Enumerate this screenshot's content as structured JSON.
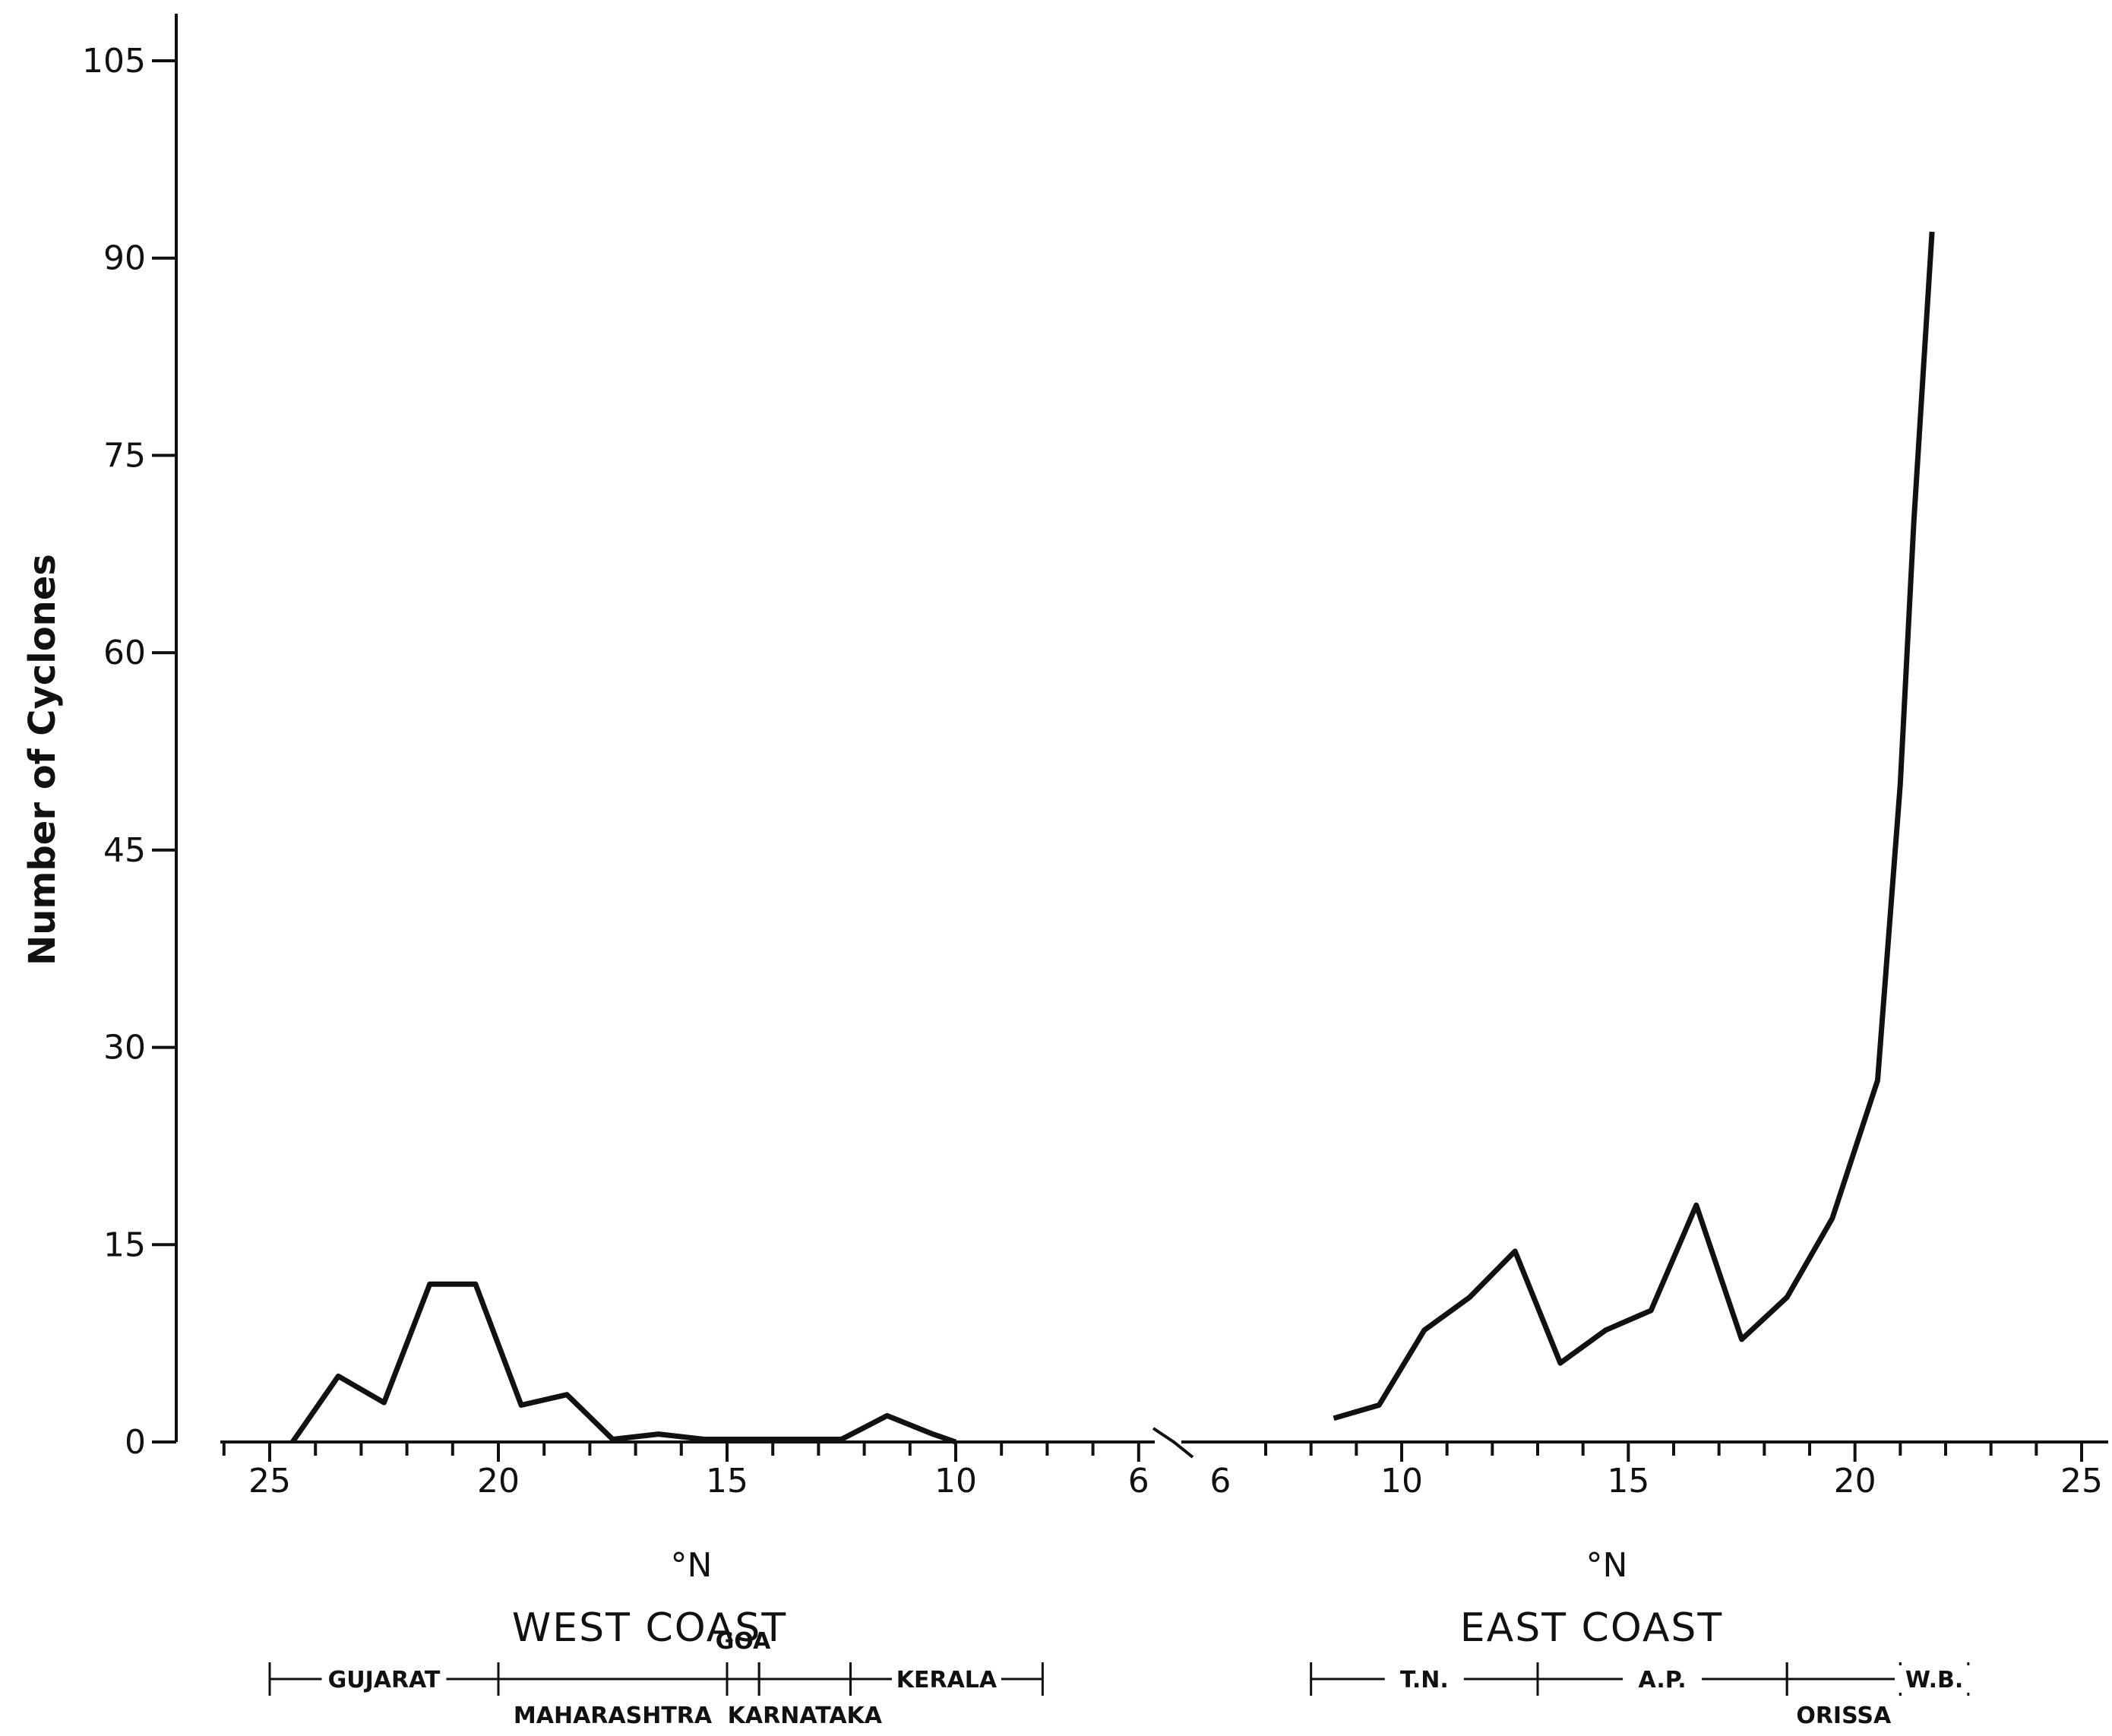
{
  "chart_data": {
    "type": "line",
    "ylabel": "Number of Cyclones",
    "ylim": [
      0,
      105
    ],
    "yticks": [
      0,
      15,
      30,
      45,
      60,
      75,
      90,
      105
    ],
    "ytick_labels": [
      "0",
      "15",
      "30",
      "45",
      "60",
      "75",
      "90",
      "105"
    ],
    "grid": false,
    "panels": [
      {
        "name": "WEST COAST",
        "xlabel": "°N",
        "xlim": [
          26,
          5.5
        ],
        "xticks": [
          25,
          20,
          15,
          10,
          6
        ],
        "xtick_labels": [
          "25",
          "20",
          "15",
          "10",
          "6"
        ],
        "states": [
          {
            "label": "GUJARAT",
            "from": 25,
            "to": 20,
            "row": "top"
          },
          {
            "label": "MAHARASHTRA",
            "from": 20,
            "to": 15,
            "row": "bottom"
          },
          {
            "label": "GOA",
            "from": 15,
            "to": 14.3,
            "row": "above"
          },
          {
            "label": "KARNATAKA",
            "from": 14.3,
            "to": 12.3,
            "row": "bottom"
          },
          {
            "label": "KERALA",
            "from": 12.3,
            "to": 8.1,
            "row": "top"
          }
        ],
        "x": [
          24.5,
          24,
          23.5,
          22.5,
          21.5,
          20.5,
          19.5,
          18.5,
          17.5,
          16.5,
          15.5,
          14.5,
          13.5,
          12.5,
          11.5,
          10.5,
          10
        ],
        "y": [
          0,
          2.5,
          5,
          3,
          12,
          12,
          2.8,
          3.6,
          0.2,
          0.6,
          0.2,
          0.2,
          0.2,
          0.2,
          2,
          0.6,
          0
        ]
      },
      {
        "name": "EAST COAST",
        "xlabel": "°N",
        "xlim": [
          6.2,
          26
        ],
        "xticks": [
          6,
          10,
          15,
          20,
          25
        ],
        "xtick_labels": [
          "6",
          "10",
          "15",
          "20",
          "25"
        ],
        "states": [
          {
            "label": "T.N.",
            "from": 8,
            "to": 13,
            "row": "top"
          },
          {
            "label": "A.P.",
            "from": 13,
            "to": 18.5,
            "row": "top"
          },
          {
            "label": "ORISSA",
            "from": 18.5,
            "to": 21,
            "row": "bottom"
          },
          {
            "label": "W.B.",
            "from": 21,
            "to": 22.5,
            "row": "top"
          }
        ],
        "x": [
          8.5,
          9.5,
          10.5,
          11.5,
          12.5,
          13.5,
          14.5,
          15.5,
          16.5,
          17.5,
          18.5,
          19.5,
          20.5,
          21,
          21.3,
          21.7
        ],
        "y": [
          1.8,
          2.8,
          8.5,
          11,
          14.5,
          6,
          8.5,
          10,
          18,
          7.8,
          11,
          17,
          27.5,
          50,
          70,
          92
        ]
      }
    ]
  }
}
